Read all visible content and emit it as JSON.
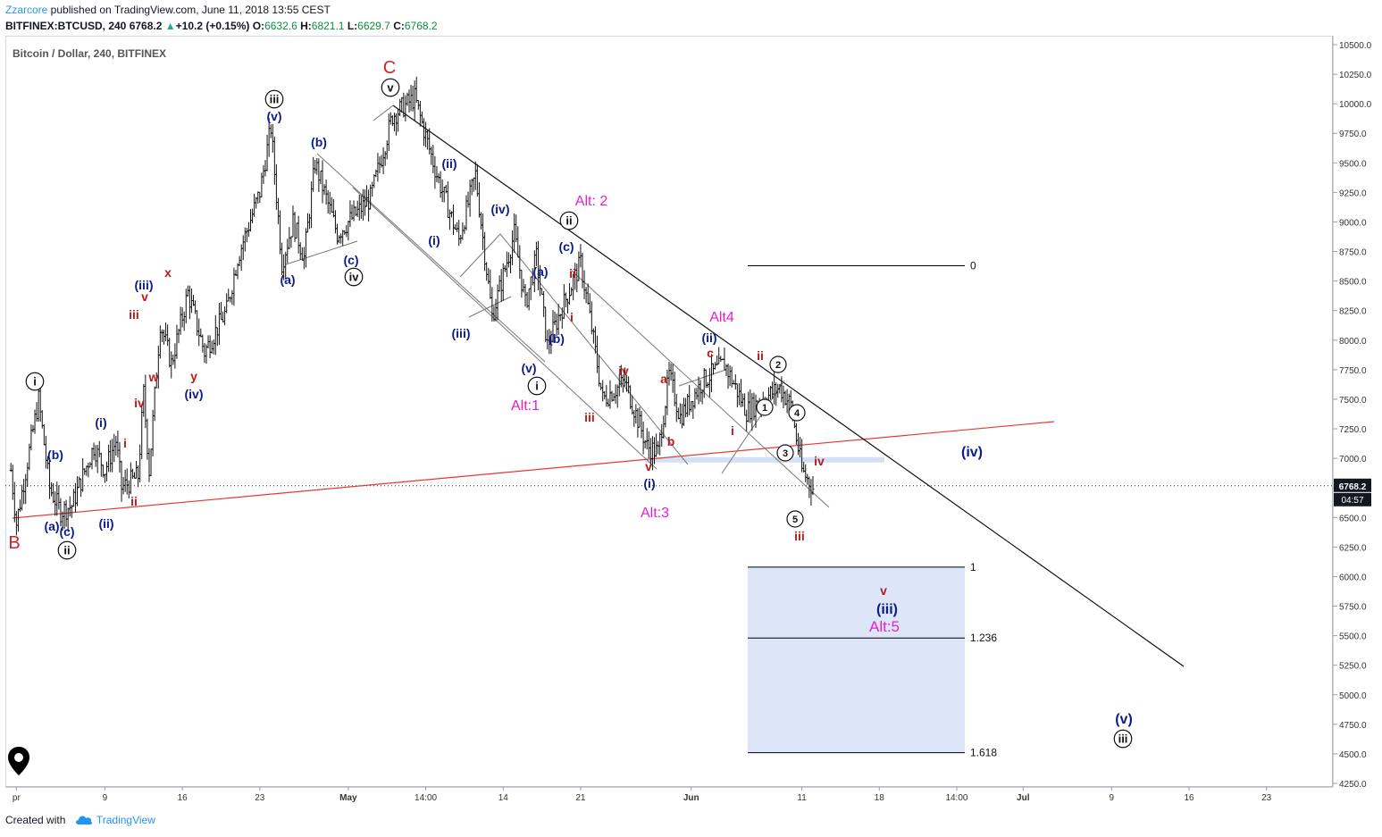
{
  "header": {
    "author": "Zzarcore",
    "published": " published on TradingView.com, June 11, 2018 13:55 CEST",
    "symbol_line": "BITFINEX:BTCUSD, 240",
    "last": "6768.2",
    "change": "+10.2 (+0.15%)",
    "open_label": "O:",
    "open": "6632.6",
    "high_label": "H:",
    "high": "6821.1",
    "low_label": "L:",
    "low": "6629.7",
    "close_label": "C:",
    "close": "6768.2"
  },
  "footer": {
    "created_with": "Created with",
    "brand": "TradingView"
  },
  "chart_data": {
    "type": "candlestick",
    "title": "Bitcoin / Dollar, 240, BITFINEX",
    "symbol": "BITFINEX:BTCUSD",
    "timeframe": "240",
    "ylim": [
      4250,
      10600
    ],
    "y_ticks": [
      4250,
      4500,
      4750,
      5000,
      5250,
      5500,
      5750,
      6000,
      6250,
      6500,
      6750,
      7000,
      7250,
      7500,
      7750,
      8000,
      8250,
      8500,
      8750,
      9000,
      9250,
      9500,
      9750,
      10000,
      10250,
      10500
    ],
    "x_ticks": [
      "pr",
      "9",
      "16",
      "23",
      "May",
      "14:00",
      "14",
      "21",
      "Jun",
      "11",
      "18",
      "14:00",
      "Jul",
      "9",
      "16",
      "23"
    ],
    "x_tick_days": [
      1,
      9,
      16,
      23,
      31,
      38,
      45,
      52,
      62,
      72,
      79,
      86,
      92,
      100,
      107,
      114
    ],
    "x_range_days": [
      0,
      120
    ],
    "price_tag": "6768.2",
    "countdown": "04:57",
    "price_path": [
      [
        0.5,
        6900
      ],
      [
        1,
        6450
      ],
      [
        3,
        7500
      ],
      [
        4,
        6750
      ],
      [
        5,
        6550
      ],
      [
        6,
        6600
      ],
      [
        8,
        7100
      ],
      [
        9,
        6900
      ],
      [
        10,
        7150
      ],
      [
        10.5,
        6750
      ],
      [
        12,
        6850
      ],
      [
        12.5,
        7550
      ],
      [
        13,
        6900
      ],
      [
        14,
        8150
      ],
      [
        15,
        7800
      ],
      [
        16.5,
        8400
      ],
      [
        18,
        7900
      ],
      [
        20,
        8250
      ],
      [
        21,
        8700
      ],
      [
        23,
        9250
      ],
      [
        24,
        9800
      ],
      [
        25,
        8650
      ],
      [
        26,
        9000
      ],
      [
        27,
        8700
      ],
      [
        28,
        9500
      ],
      [
        30,
        8900
      ],
      [
        33,
        9200
      ],
      [
        35,
        9900
      ],
      [
        37,
        10050
      ],
      [
        39,
        9400
      ],
      [
        41,
        8850
      ],
      [
        42.5,
        9400
      ],
      [
        44,
        8200
      ],
      [
        46,
        8900
      ],
      [
        47,
        8300
      ],
      [
        48,
        8700
      ],
      [
        49,
        7950
      ],
      [
        50,
        8200
      ],
      [
        52,
        8650
      ],
      [
        53,
        8100
      ],
      [
        54,
        7500
      ],
      [
        56,
        7650
      ],
      [
        58,
        7100
      ],
      [
        59,
        7050
      ],
      [
        60,
        7700
      ],
      [
        61,
        7350
      ],
      [
        63,
        7650
      ],
      [
        65,
        7800
      ],
      [
        67,
        7400
      ],
      [
        70,
        7600
      ],
      [
        71,
        7450
      ],
      [
        72,
        6900
      ],
      [
        73,
        6750
      ]
    ],
    "labels": {
      "B": "B",
      "C": "C",
      "w_v_top": "v",
      "w_iii_top": "iii",
      "w_v_blue": "(v)",
      "w_b": "(b)",
      "w_c": "(c)",
      "w_a": "(a)",
      "w_iv_circ": "iv",
      "w_iii_blue": "(iii)",
      "w_x": "x",
      "w_v_red": "v",
      "w_iii_red": "iii",
      "w_w": "w",
      "w_y": "y",
      "w_iv_blue": "(iv)",
      "w_iv_red": "iv",
      "w_i_circ": "i",
      "w_b2": "(b)",
      "w_i_blue": "(i)",
      "w_i_red": "i",
      "w_ii_red": "ii",
      "w_ii_blue": "(ii)",
      "w_a2": "(a)",
      "w_c2": "(c)",
      "w_ii_circ": "ii",
      "d_ii_blue": "(ii)",
      "d_i_blue": "(i)",
      "d_iv_blue": "(iv)",
      "d_iii_blue": "(iii)",
      "d_v_blue": "(v)",
      "d_i_circ": "i",
      "d_alt1": "Alt:1",
      "d_alt2": "Alt: 2",
      "d_ii_circ2": "ii",
      "d_c_blue": "(c)",
      "d_ii_red": "ii",
      "d_a_blue": "(a)",
      "d_i_red": "i",
      "d_b_blue": "(b)",
      "d_iii_red": "iii",
      "d_iv_red": "iv",
      "d_a_red": "a",
      "d_b_red": "b",
      "d_v_red": "v",
      "d_i_blue2": "(i)",
      "d_alt3": "Alt:3",
      "d_alt4": "Alt4",
      "d_ii_blue2": "(ii)",
      "d_c_red": "c",
      "d_ii_red2": "ii",
      "d_i_red2": "i",
      "n1": "1",
      "n2": "2",
      "n3": "3",
      "n4": "4",
      "n5": "5",
      "d_iii_red2": "iii",
      "d_iv_red2": "iv",
      "d_iv_blue2": "(iv)",
      "p_v_red": "v",
      "p_iii_blue": "(iii)",
      "p_alt5": "Alt:5",
      "p_v_blue": "(v)",
      "p_iii_circ": "iii"
    },
    "fib_levels": [
      {
        "ratio": "0",
        "price": 8630
      },
      {
        "ratio": "1",
        "price": 6080
      },
      {
        "ratio": "1.236",
        "price": 5480
      },
      {
        "ratio": "1.618",
        "price": 4510
      }
    ]
  }
}
